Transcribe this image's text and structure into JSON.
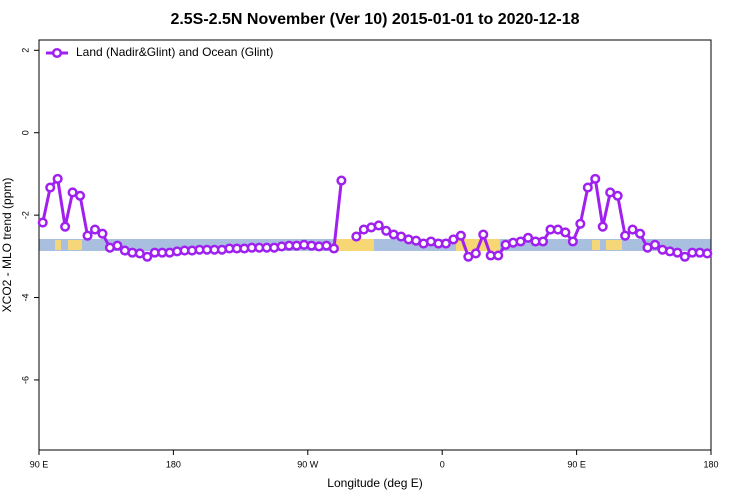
{
  "chart_data": {
    "type": "line",
    "title": "2.5S-2.5N November (Ver 10)   2015-01-01 to 2020-12-18",
    "xlabel": "Longitude (deg E)",
    "ylabel": "XCO2 - MLO trend (ppm)",
    "x": [
      92.5,
      97.5,
      102.5,
      107.5,
      112.5,
      117.5,
      122.5,
      127.5,
      132.5,
      137.5,
      142.5,
      147.5,
      152.5,
      157.5,
      162.5,
      167.5,
      172.5,
      177.5,
      182.5,
      187.5,
      192.5,
      197.5,
      202.5,
      207.5,
      212.5,
      217.5,
      222.5,
      227.5,
      232.5,
      237.5,
      242.5,
      247.5,
      252.5,
      257.5,
      262.5,
      267.5,
      272.5,
      277.5,
      282.5,
      287.5,
      292.5,
      297.5,
      302.5,
      307.5,
      312.5,
      317.5,
      322.5,
      327.5,
      332.5,
      337.5,
      342.5,
      347.5,
      352.5,
      357.5,
      362.5,
      367.5,
      372.5,
      377.5,
      382.5,
      387.5,
      392.5,
      397.5,
      402.5,
      407.5,
      412.5,
      417.5,
      422.5,
      427.5,
      432.5,
      437.5,
      442.5,
      447.5,
      452.5,
      457.5,
      462.5,
      467.5,
      472.5,
      477.5,
      482.5,
      487.5,
      492.5,
      497.5,
      502.5,
      507.5,
      512.5,
      517.5,
      522.5,
      527.5,
      532.5,
      537.5
    ],
    "series": [
      {
        "name": "Land (Nadir&Glint) and Ocean (Glint)",
        "color": "#a020f0",
        "values": [
          -2.18,
          -1.33,
          -1.12,
          -2.28,
          -1.45,
          -1.53,
          -2.5,
          -2.35,
          -2.45,
          -2.79,
          -2.74,
          -2.86,
          -2.91,
          -2.93,
          -3.01,
          -2.91,
          -2.91,
          -2.91,
          -2.88,
          -2.86,
          -2.86,
          -2.84,
          -2.84,
          -2.84,
          -2.84,
          -2.81,
          -2.81,
          -2.81,
          -2.79,
          -2.79,
          -2.79,
          -2.79,
          -2.76,
          -2.74,
          -2.74,
          -2.72,
          -2.74,
          -2.76,
          -2.74,
          -2.81,
          -1.16,
          null,
          -2.52,
          -2.35,
          -2.3,
          -2.25,
          -2.38,
          -2.47,
          -2.52,
          -2.59,
          -2.62,
          -2.69,
          -2.64,
          -2.69,
          -2.69,
          -2.59,
          -2.5,
          -3.01,
          -2.93,
          -2.47,
          -2.98,
          -2.98,
          -2.72,
          -2.67,
          -2.64,
          -2.55,
          -2.64,
          -2.64,
          -2.35,
          -2.35,
          -2.42,
          -2.64,
          -2.21,
          -1.33,
          -1.12,
          -2.28,
          -1.45,
          -1.53,
          -2.5,
          -2.35,
          -2.45,
          -2.79,
          -2.72,
          -2.84,
          -2.88,
          -2.91,
          -3.01,
          -2.91,
          -2.91,
          -2.93
        ]
      }
    ],
    "xlim": [
      90,
      540
    ],
    "xticks": [
      {
        "value": 90,
        "label": "90 E"
      },
      180,
      {
        "value": 270,
        "label": "90 W"
      },
      {
        "value": 360,
        "label": "0"
      },
      {
        "value": 450,
        "label": "90 E"
      },
      {
        "value": 540,
        "label": "180"
      }
    ],
    "ylim": [
      -7.7,
      2.25
    ],
    "yticks": [
      2,
      0,
      -2,
      -4,
      -6
    ],
    "grid": false,
    "legend": "top-left"
  }
}
